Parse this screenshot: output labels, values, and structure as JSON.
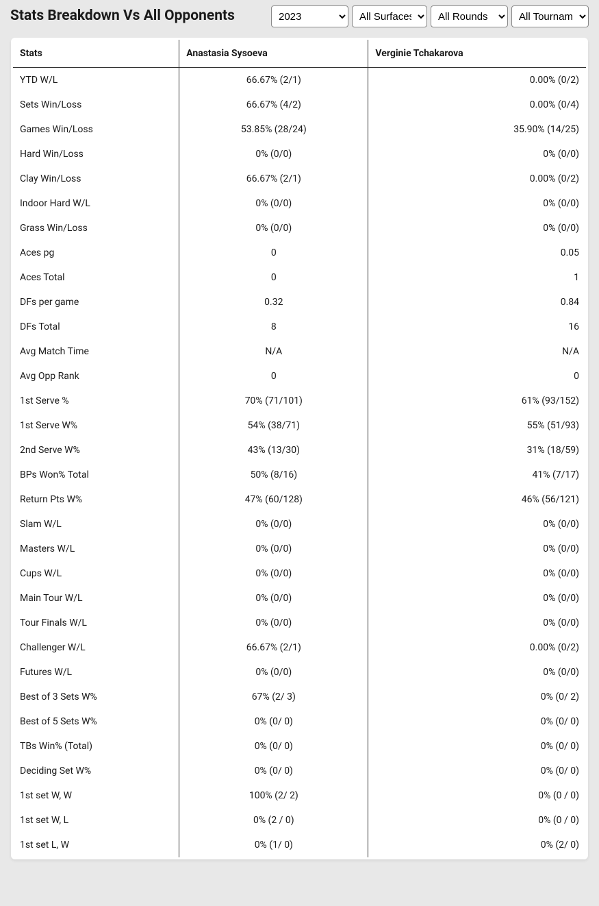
{
  "title": "Stats Breakdown Vs All Opponents",
  "filters": {
    "year": {
      "selected": "2023",
      "options": [
        "2023"
      ]
    },
    "surface": {
      "selected": "All Surfaces",
      "options": [
        "All Surfaces"
      ]
    },
    "rounds": {
      "selected": "All Rounds",
      "options": [
        "All Rounds"
      ]
    },
    "tournament": {
      "selected": "All Tournaments",
      "options": [
        "All Tournaments"
      ]
    }
  },
  "table": {
    "headers": {
      "stats": "Stats",
      "p1": "Anastasia Sysoeva",
      "p2": "Verginie Tchakarova"
    },
    "rows": [
      {
        "label": "YTD W/L",
        "p1": "66.67% (2/1)",
        "p2": "0.00% (0/2)"
      },
      {
        "label": "Sets Win/Loss",
        "p1": "66.67% (4/2)",
        "p2": "0.00% (0/4)"
      },
      {
        "label": "Games Win/Loss",
        "p1": "53.85% (28/24)",
        "p2": "35.90% (14/25)"
      },
      {
        "label": "Hard Win/Loss",
        "p1": "0% (0/0)",
        "p2": "0% (0/0)"
      },
      {
        "label": "Clay Win/Loss",
        "p1": "66.67% (2/1)",
        "p2": "0.00% (0/2)"
      },
      {
        "label": "Indoor Hard W/L",
        "p1": "0% (0/0)",
        "p2": "0% (0/0)"
      },
      {
        "label": "Grass Win/Loss",
        "p1": "0% (0/0)",
        "p2": "0% (0/0)"
      },
      {
        "label": "Aces pg",
        "p1": "0",
        "p2": "0.05"
      },
      {
        "label": "Aces Total",
        "p1": "0",
        "p2": "1"
      },
      {
        "label": "DFs per game",
        "p1": "0.32",
        "p2": "0.84"
      },
      {
        "label": "DFs Total",
        "p1": "8",
        "p2": "16"
      },
      {
        "label": "Avg Match Time",
        "p1": "N/A",
        "p2": "N/A"
      },
      {
        "label": "Avg Opp Rank",
        "p1": "0",
        "p2": "0"
      },
      {
        "label": "1st Serve %",
        "p1": "70% (71/101)",
        "p2": "61% (93/152)"
      },
      {
        "label": "1st Serve W%",
        "p1": "54% (38/71)",
        "p2": "55% (51/93)"
      },
      {
        "label": "2nd Serve W%",
        "p1": "43% (13/30)",
        "p2": "31% (18/59)"
      },
      {
        "label": "BPs Won% Total",
        "p1": "50% (8/16)",
        "p2": "41% (7/17)"
      },
      {
        "label": "Return Pts W%",
        "p1": "47% (60/128)",
        "p2": "46% (56/121)"
      },
      {
        "label": "Slam W/L",
        "p1": "0% (0/0)",
        "p2": "0% (0/0)"
      },
      {
        "label": "Masters W/L",
        "p1": "0% (0/0)",
        "p2": "0% (0/0)"
      },
      {
        "label": "Cups W/L",
        "p1": "0% (0/0)",
        "p2": "0% (0/0)"
      },
      {
        "label": "Main Tour W/L",
        "p1": "0% (0/0)",
        "p2": "0% (0/0)"
      },
      {
        "label": "Tour Finals W/L",
        "p1": "0% (0/0)",
        "p2": "0% (0/0)"
      },
      {
        "label": "Challenger W/L",
        "p1": "66.67% (2/1)",
        "p2": "0.00% (0/2)"
      },
      {
        "label": "Futures W/L",
        "p1": "0% (0/0)",
        "p2": "0% (0/0)"
      },
      {
        "label": "Best of 3 Sets W%",
        "p1": "67% (2/ 3)",
        "p2": "0% (0/ 2)"
      },
      {
        "label": "Best of 5 Sets W%",
        "p1": "0% (0/ 0)",
        "p2": "0% (0/ 0)"
      },
      {
        "label": "TBs Win% (Total)",
        "p1": "0% (0/ 0)",
        "p2": "0% (0/ 0)"
      },
      {
        "label": "Deciding Set W%",
        "p1": "0% (0/ 0)",
        "p2": "0% (0/ 0)"
      },
      {
        "label": "1st set W, W",
        "p1": "100% (2/ 2)",
        "p2": "0% (0 / 0)"
      },
      {
        "label": "1st set W, L",
        "p1": "0% (2 / 0)",
        "p2": "0% (0 / 0)"
      },
      {
        "label": "1st set L, W",
        "p1": "0% (1/ 0)",
        "p2": "0% (2/ 0)"
      }
    ]
  },
  "style": {
    "page_bg": "#e8e8e8",
    "panel_bg": "#ffffff",
    "border_color": "#333333",
    "text_color": "#1a1a1a",
    "title_fontsize": 21,
    "header_fontsize": 14,
    "cell_fontsize": 14
  }
}
